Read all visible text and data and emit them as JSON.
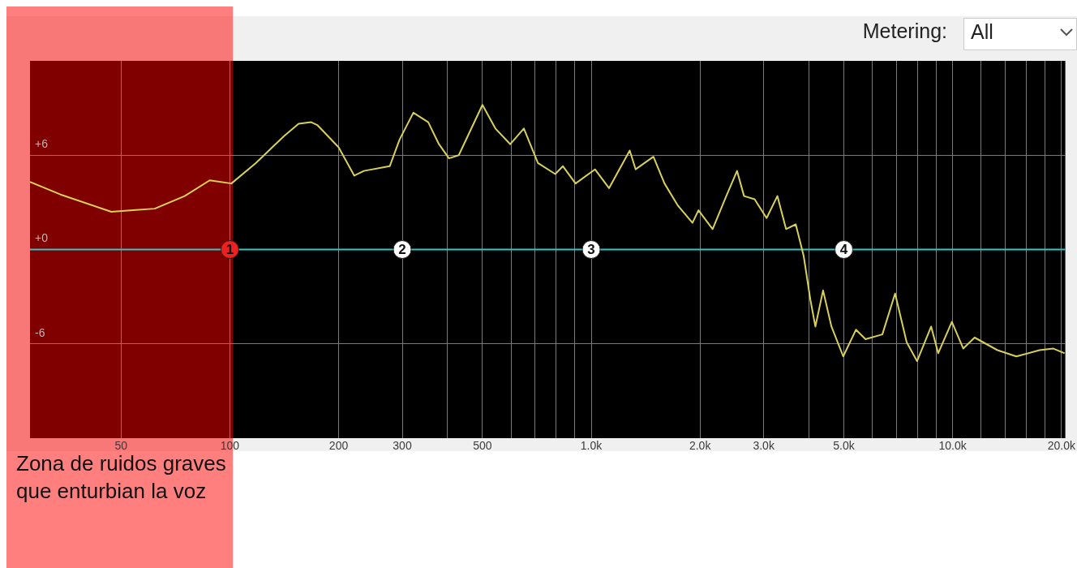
{
  "chart_data": {
    "type": "line",
    "log": "x",
    "xlim": [
      28,
      20500
    ],
    "ylim": [
      -12,
      12
    ],
    "xticks": [
      50,
      100,
      200,
      300,
      {
        "value": 400,
        "label": null
      },
      500,
      {
        "value": 600,
        "label": null
      },
      {
        "value": 700,
        "label": null
      },
      {
        "value": 800,
        "label": null
      },
      {
        "value": 900,
        "label": null
      },
      {
        "value": 1000,
        "label": "1.0k"
      },
      {
        "value": 2000,
        "label": "2.0k"
      },
      {
        "value": 3000,
        "label": "3.0k"
      },
      {
        "value": 4000,
        "label": null
      },
      {
        "value": 5000,
        "label": "5.0k"
      },
      {
        "value": 6000,
        "label": null
      },
      {
        "value": 7000,
        "label": null
      },
      {
        "value": 8000,
        "label": null
      },
      {
        "value": 9000,
        "label": null
      },
      {
        "value": 10000,
        "label": "10.0k"
      },
      {
        "value": 12000,
        "label": null
      },
      {
        "value": 14000,
        "label": null
      },
      {
        "value": 16000,
        "label": null
      },
      {
        "value": 18000,
        "label": null
      },
      {
        "value": 20000,
        "label": "20.0k"
      }
    ],
    "yticks": [
      {
        "value": 6,
        "label": "+6"
      },
      {
        "value": 0,
        "label": "+0"
      },
      {
        "value": -6,
        "label": "-6"
      }
    ],
    "grid": true,
    "legend": false,
    "marker": "none",
    "line_style": "solid",
    "series": [
      {
        "type": "line",
        "color": "#d8d058",
        "x": [
          28,
          34,
          47,
          54,
          62,
          75,
          88,
          101,
          118,
          141,
          155,
          168,
          175,
          200,
          221,
          235,
          277,
          295,
          322,
          354,
          379,
          404,
          430,
          500,
          543,
          597,
          651,
          712,
          795,
          835,
          905,
          1024,
          1120,
          1278,
          1327,
          1486,
          1595,
          1736,
          1906,
          1980,
          2167,
          2364,
          2532,
          2647,
          2831,
          3056,
          3274,
          3460,
          3680,
          3870,
          4040,
          4170,
          4380,
          4620,
          4980,
          5400,
          5740,
          6390,
          6930,
          7460,
          7970,
          8720,
          9120,
          9950,
          10700,
          11500,
          13300,
          15000,
          17400,
          19000,
          20400
        ],
        "values": [
          4.3,
          3.5,
          2.4,
          2.5,
          2.6,
          3.4,
          4.4,
          4.2,
          5.5,
          7.2,
          8.0,
          8.1,
          7.9,
          6.5,
          4.7,
          5.0,
          5.3,
          7.0,
          8.7,
          8.1,
          6.7,
          5.8,
          6.0,
          9.2,
          7.7,
          6.7,
          7.7,
          5.5,
          4.8,
          5.3,
          4.2,
          5.1,
          3.9,
          6.3,
          5.1,
          5.9,
          4.2,
          2.8,
          1.7,
          2.5,
          1.3,
          3.4,
          5.0,
          3.4,
          3.2,
          2.0,
          3.4,
          1.3,
          1.6,
          -0.4,
          -3.2,
          -4.9,
          -2.6,
          -4.9,
          -6.8,
          -5.1,
          -5.7,
          -5.4,
          -2.8,
          -5.9,
          -7.1,
          -4.9,
          -6.6,
          -4.6,
          -6.3,
          -5.6,
          -6.4,
          -6.8,
          -6.4,
          -6.3,
          -6.6
        ]
      },
      {
        "type": "line",
        "color": "#30c8c8",
        "x": [
          28,
          20500
        ],
        "values": [
          0,
          0
        ]
      },
      {
        "type": "scatter",
        "marker": "circle",
        "x": [
          100,
          300,
          1000,
          5000
        ],
        "values": [
          0,
          0,
          0,
          0
        ],
        "colors": [
          "#ee2020",
          "#ffffff",
          "#ffffff",
          "#ffffff"
        ]
      }
    ],
    "bands": [
      {
        "axis": "x",
        "from": 28,
        "to": 102,
        "color": "#ff0000",
        "label": "Zona de ruidos graves que enturbian la voz"
      }
    ],
    "annotations": [
      "Metering:",
      "All",
      {
        "text": "1",
        "x": 100,
        "y": 0
      },
      {
        "text": "2",
        "x": 300,
        "y": 0
      },
      {
        "text": "3",
        "x": 1000,
        "y": 0
      },
      {
        "text": "4",
        "x": 5000,
        "y": 0
      }
    ]
  }
}
